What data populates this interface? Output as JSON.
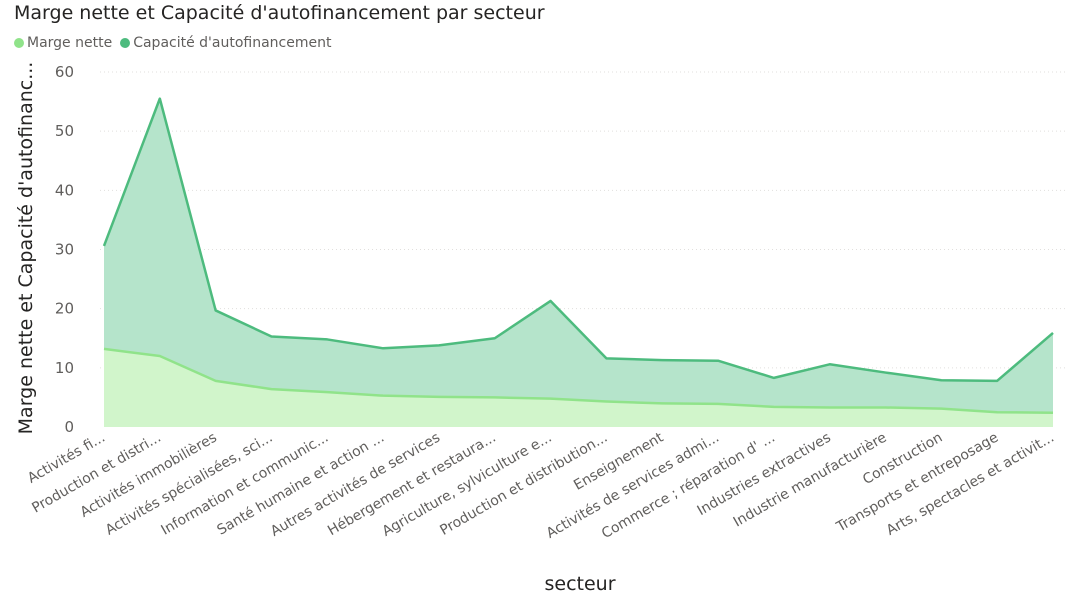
{
  "chart_data": {
    "type": "area",
    "title": "Marge nette et Capacité d'autofinancement par secteur",
    "xlabel": "secteur",
    "ylabel": "Marge nette et Capacité d'autofinanc...",
    "ylim": [
      0,
      60
    ],
    "yticks": [
      "0",
      "10",
      "20",
      "30",
      "40",
      "50",
      "60"
    ],
    "grid": true,
    "legend_position": "top-left",
    "categories": [
      "Activités fi...",
      "Production et distri...",
      "Activités immobilières",
      "Activités spécialisées, sci...",
      "Information et communic...",
      "Santé humaine et action ...",
      "Autres activités de services",
      "Hébergement et restaura...",
      "Agriculture, sylviculture e...",
      "Production et distribution...",
      "Enseignement",
      "Activités de services admi...",
      "Commerce ; réparation d' ...",
      "Industries extractives",
      "Industrie manufacturière",
      "Construction",
      "Transports et entreposage",
      "Arts, spectacles et activit..."
    ],
    "series": [
      {
        "name": "Marge nette",
        "color": "#90e38a",
        "fill": "#d1f5cb",
        "values": [
          13.2,
          12.0,
          7.8,
          6.4,
          5.9,
          5.3,
          5.1,
          5.0,
          4.8,
          4.3,
          4.0,
          3.9,
          3.4,
          3.3,
          3.3,
          3.1,
          2.5,
          2.4
        ]
      },
      {
        "name": "Capacité d'autofinancement",
        "color": "#4dbb7e",
        "fill": "#b5e4cb",
        "values": [
          30.6,
          55.5,
          19.7,
          15.3,
          14.8,
          13.3,
          13.8,
          15.0,
          21.3,
          11.6,
          11.3,
          11.2,
          8.3,
          10.6,
          9.2,
          7.9,
          7.8,
          15.9
        ]
      }
    ]
  }
}
